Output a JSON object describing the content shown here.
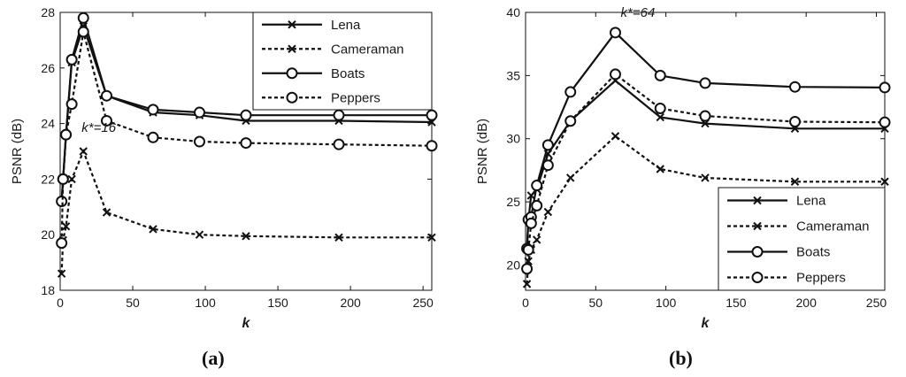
{
  "chart_data": [
    {
      "type": "line",
      "panel_label": "(a)",
      "title": "",
      "xlabel": "k",
      "ylabel": "PSNR (dB)",
      "xlim": [
        0,
        256
      ],
      "ylim": [
        18,
        28
      ],
      "xticks": [
        0,
        50,
        100,
        150,
        200,
        250
      ],
      "yticks": [
        18,
        20,
        22,
        24,
        26,
        28
      ],
      "grid": false,
      "legend_position": "top-right",
      "annotation": {
        "text": "k*=16",
        "x": 16,
        "y": 23.7
      },
      "series": [
        {
          "name": "Lena",
          "marker": "x",
          "dash": "solid",
          "x": [
            1,
            2,
            4,
            8,
            16,
            32,
            64,
            96,
            128,
            192,
            256
          ],
          "y": [
            21.2,
            22.0,
            23.6,
            26.2,
            27.5,
            25.0,
            24.4,
            24.3,
            24.1,
            24.1,
            24.05
          ]
        },
        {
          "name": "Cameraman",
          "marker": "x",
          "dash": "dashed",
          "x": [
            1,
            2,
            4,
            8,
            16,
            32,
            64,
            96,
            128,
            192,
            256
          ],
          "y": [
            18.6,
            19.8,
            20.3,
            22.0,
            23.0,
            20.8,
            20.2,
            20.0,
            19.95,
            19.9,
            19.9
          ]
        },
        {
          "name": "Boats",
          "marker": "o",
          "dash": "solid",
          "x": [
            1,
            2,
            4,
            8,
            16,
            32,
            64,
            96,
            128,
            192,
            256
          ],
          "y": [
            21.2,
            22.0,
            23.6,
            26.3,
            27.8,
            25.0,
            24.5,
            24.4,
            24.3,
            24.3,
            24.3
          ]
        },
        {
          "name": "Peppers",
          "marker": "o",
          "dash": "dashed",
          "x": [
            1,
            2,
            4,
            8,
            16,
            32,
            64,
            96,
            128,
            192,
            256
          ],
          "y": [
            19.7,
            22.0,
            23.6,
            24.7,
            27.3,
            24.1,
            23.5,
            23.35,
            23.3,
            23.25,
            23.2
          ]
        }
      ]
    },
    {
      "type": "line",
      "panel_label": "(b)",
      "title": "",
      "xlabel": "k",
      "ylabel": "PSNR (dB)",
      "xlim": [
        0,
        256
      ],
      "ylim": [
        18,
        40
      ],
      "xticks": [
        0,
        50,
        100,
        150,
        200,
        250
      ],
      "yticks": [
        20,
        25,
        30,
        35,
        40
      ],
      "grid": false,
      "legend_position": "bottom-right",
      "annotation": {
        "text": "k*=64",
        "x": 64,
        "y": 39.5
      },
      "series": [
        {
          "name": "Lena",
          "marker": "x",
          "dash": "solid",
          "x": [
            1,
            2,
            4,
            8,
            16,
            32,
            64,
            96,
            128,
            192,
            256
          ],
          "y": [
            21.3,
            23.5,
            25.5,
            26.0,
            28.8,
            31.4,
            34.6,
            31.7,
            31.2,
            30.8,
            30.8
          ]
        },
        {
          "name": "Cameraman",
          "marker": "x",
          "dash": "dashed",
          "x": [
            1,
            2,
            4,
            8,
            16,
            32,
            64,
            96,
            128,
            192,
            256
          ],
          "y": [
            18.5,
            20.3,
            21.2,
            22.0,
            24.2,
            26.9,
            30.2,
            27.6,
            26.9,
            26.6,
            26.6
          ]
        },
        {
          "name": "Boats",
          "marker": "o",
          "dash": "solid",
          "x": [
            1,
            2,
            4,
            8,
            16,
            32,
            64,
            96,
            128,
            192,
            256
          ],
          "y": [
            21.3,
            23.6,
            23.8,
            26.3,
            29.5,
            33.7,
            38.4,
            35.0,
            34.4,
            34.1,
            34.05
          ]
        },
        {
          "name": "Peppers",
          "marker": "o",
          "dash": "dashed",
          "x": [
            1,
            2,
            4,
            8,
            16,
            32,
            64,
            96,
            128,
            192,
            256
          ],
          "y": [
            19.7,
            21.2,
            23.3,
            24.7,
            27.9,
            31.4,
            35.1,
            32.4,
            31.8,
            31.35,
            31.3
          ]
        }
      ]
    }
  ]
}
